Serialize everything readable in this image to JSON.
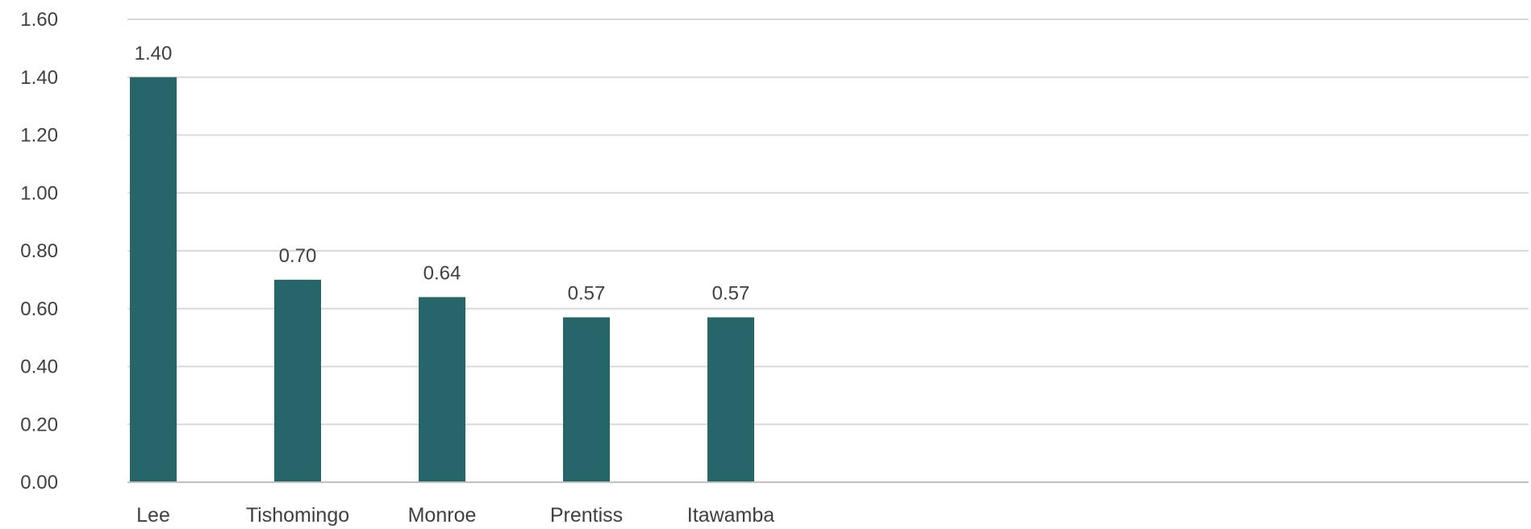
{
  "chart_data": {
    "type": "bar",
    "title": "",
    "xlabel": "",
    "ylabel": "",
    "categories": [
      "Lee",
      "Tishomingo",
      "Monroe",
      "Prentiss",
      "Itawamba"
    ],
    "values": [
      1.4,
      0.7,
      0.64,
      0.57,
      0.57
    ],
    "value_labels": [
      "1.40",
      "0.70",
      "0.64",
      "0.57",
      "0.57"
    ],
    "ylim": [
      0,
      1.6
    ],
    "yticks": [
      "0.00",
      "0.20",
      "0.40",
      "0.60",
      "0.80",
      "1.00",
      "1.20",
      "1.40",
      "1.60"
    ],
    "grid": true,
    "legend": "none",
    "bar_color": "#266669"
  }
}
